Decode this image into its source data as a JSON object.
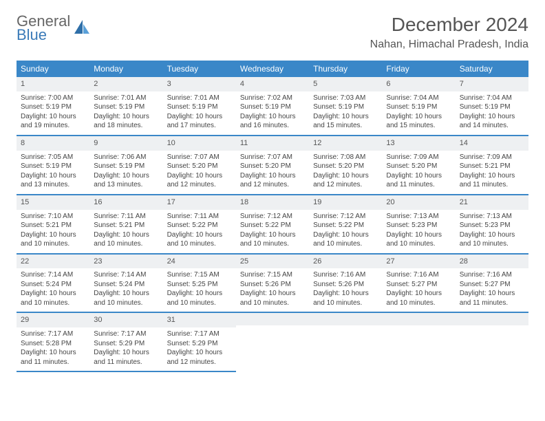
{
  "brand": {
    "part1": "General",
    "part2": "Blue"
  },
  "title": "December 2024",
  "location": "Nahan, Himachal Pradesh, India",
  "dayHeaders": [
    "Sunday",
    "Monday",
    "Tuesday",
    "Wednesday",
    "Thursday",
    "Friday",
    "Saturday"
  ],
  "colors": {
    "headerBg": "#3a87c8",
    "headerText": "#ffffff",
    "dayNumBg": "#eef0f2",
    "rowBorder": "#3a87c8",
    "bodyText": "#444444",
    "brandGrey": "#666666",
    "brandBlue": "#3a7ab8"
  },
  "typography": {
    "titleFontSize": 28,
    "locationFontSize": 16,
    "headerFontSize": 12,
    "cellFontSize": 10
  },
  "weeks": [
    [
      {
        "n": "1",
        "sr": "Sunrise: 7:00 AM",
        "ss": "Sunset: 5:19 PM",
        "d1": "Daylight: 10 hours",
        "d2": "and 19 minutes."
      },
      {
        "n": "2",
        "sr": "Sunrise: 7:01 AM",
        "ss": "Sunset: 5:19 PM",
        "d1": "Daylight: 10 hours",
        "d2": "and 18 minutes."
      },
      {
        "n": "3",
        "sr": "Sunrise: 7:01 AM",
        "ss": "Sunset: 5:19 PM",
        "d1": "Daylight: 10 hours",
        "d2": "and 17 minutes."
      },
      {
        "n": "4",
        "sr": "Sunrise: 7:02 AM",
        "ss": "Sunset: 5:19 PM",
        "d1": "Daylight: 10 hours",
        "d2": "and 16 minutes."
      },
      {
        "n": "5",
        "sr": "Sunrise: 7:03 AM",
        "ss": "Sunset: 5:19 PM",
        "d1": "Daylight: 10 hours",
        "d2": "and 15 minutes."
      },
      {
        "n": "6",
        "sr": "Sunrise: 7:04 AM",
        "ss": "Sunset: 5:19 PM",
        "d1": "Daylight: 10 hours",
        "d2": "and 15 minutes."
      },
      {
        "n": "7",
        "sr": "Sunrise: 7:04 AM",
        "ss": "Sunset: 5:19 PM",
        "d1": "Daylight: 10 hours",
        "d2": "and 14 minutes."
      }
    ],
    [
      {
        "n": "8",
        "sr": "Sunrise: 7:05 AM",
        "ss": "Sunset: 5:19 PM",
        "d1": "Daylight: 10 hours",
        "d2": "and 13 minutes."
      },
      {
        "n": "9",
        "sr": "Sunrise: 7:06 AM",
        "ss": "Sunset: 5:19 PM",
        "d1": "Daylight: 10 hours",
        "d2": "and 13 minutes."
      },
      {
        "n": "10",
        "sr": "Sunrise: 7:07 AM",
        "ss": "Sunset: 5:20 PM",
        "d1": "Daylight: 10 hours",
        "d2": "and 12 minutes."
      },
      {
        "n": "11",
        "sr": "Sunrise: 7:07 AM",
        "ss": "Sunset: 5:20 PM",
        "d1": "Daylight: 10 hours",
        "d2": "and 12 minutes."
      },
      {
        "n": "12",
        "sr": "Sunrise: 7:08 AM",
        "ss": "Sunset: 5:20 PM",
        "d1": "Daylight: 10 hours",
        "d2": "and 12 minutes."
      },
      {
        "n": "13",
        "sr": "Sunrise: 7:09 AM",
        "ss": "Sunset: 5:20 PM",
        "d1": "Daylight: 10 hours",
        "d2": "and 11 minutes."
      },
      {
        "n": "14",
        "sr": "Sunrise: 7:09 AM",
        "ss": "Sunset: 5:21 PM",
        "d1": "Daylight: 10 hours",
        "d2": "and 11 minutes."
      }
    ],
    [
      {
        "n": "15",
        "sr": "Sunrise: 7:10 AM",
        "ss": "Sunset: 5:21 PM",
        "d1": "Daylight: 10 hours",
        "d2": "and 10 minutes."
      },
      {
        "n": "16",
        "sr": "Sunrise: 7:11 AM",
        "ss": "Sunset: 5:21 PM",
        "d1": "Daylight: 10 hours",
        "d2": "and 10 minutes."
      },
      {
        "n": "17",
        "sr": "Sunrise: 7:11 AM",
        "ss": "Sunset: 5:22 PM",
        "d1": "Daylight: 10 hours",
        "d2": "and 10 minutes."
      },
      {
        "n": "18",
        "sr": "Sunrise: 7:12 AM",
        "ss": "Sunset: 5:22 PM",
        "d1": "Daylight: 10 hours",
        "d2": "and 10 minutes."
      },
      {
        "n": "19",
        "sr": "Sunrise: 7:12 AM",
        "ss": "Sunset: 5:22 PM",
        "d1": "Daylight: 10 hours",
        "d2": "and 10 minutes."
      },
      {
        "n": "20",
        "sr": "Sunrise: 7:13 AM",
        "ss": "Sunset: 5:23 PM",
        "d1": "Daylight: 10 hours",
        "d2": "and 10 minutes."
      },
      {
        "n": "21",
        "sr": "Sunrise: 7:13 AM",
        "ss": "Sunset: 5:23 PM",
        "d1": "Daylight: 10 hours",
        "d2": "and 10 minutes."
      }
    ],
    [
      {
        "n": "22",
        "sr": "Sunrise: 7:14 AM",
        "ss": "Sunset: 5:24 PM",
        "d1": "Daylight: 10 hours",
        "d2": "and 10 minutes."
      },
      {
        "n": "23",
        "sr": "Sunrise: 7:14 AM",
        "ss": "Sunset: 5:24 PM",
        "d1": "Daylight: 10 hours",
        "d2": "and 10 minutes."
      },
      {
        "n": "24",
        "sr": "Sunrise: 7:15 AM",
        "ss": "Sunset: 5:25 PM",
        "d1": "Daylight: 10 hours",
        "d2": "and 10 minutes."
      },
      {
        "n": "25",
        "sr": "Sunrise: 7:15 AM",
        "ss": "Sunset: 5:26 PM",
        "d1": "Daylight: 10 hours",
        "d2": "and 10 minutes."
      },
      {
        "n": "26",
        "sr": "Sunrise: 7:16 AM",
        "ss": "Sunset: 5:26 PM",
        "d1": "Daylight: 10 hours",
        "d2": "and 10 minutes."
      },
      {
        "n": "27",
        "sr": "Sunrise: 7:16 AM",
        "ss": "Sunset: 5:27 PM",
        "d1": "Daylight: 10 hours",
        "d2": "and 10 minutes."
      },
      {
        "n": "28",
        "sr": "Sunrise: 7:16 AM",
        "ss": "Sunset: 5:27 PM",
        "d1": "Daylight: 10 hours",
        "d2": "and 11 minutes."
      }
    ],
    [
      {
        "n": "29",
        "sr": "Sunrise: 7:17 AM",
        "ss": "Sunset: 5:28 PM",
        "d1": "Daylight: 10 hours",
        "d2": "and 11 minutes."
      },
      {
        "n": "30",
        "sr": "Sunrise: 7:17 AM",
        "ss": "Sunset: 5:29 PM",
        "d1": "Daylight: 10 hours",
        "d2": "and 11 minutes."
      },
      {
        "n": "31",
        "sr": "Sunrise: 7:17 AM",
        "ss": "Sunset: 5:29 PM",
        "d1": "Daylight: 10 hours",
        "d2": "and 12 minutes."
      },
      null,
      null,
      null,
      null
    ]
  ]
}
